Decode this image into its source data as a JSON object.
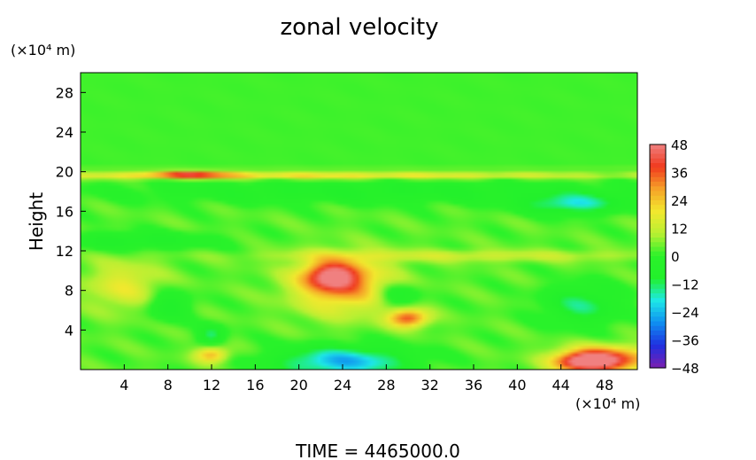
{
  "chart_data": {
    "type": "heatmap",
    "title": "zonal velocity",
    "ylabel": "Height",
    "y_unit": "(×10⁴ m)",
    "x_unit": "(×10⁴ m)",
    "footer": "TIME  =  4465000.0",
    "xlim": [
      0,
      51
    ],
    "ylim": [
      0,
      30
    ],
    "x_ticks": [
      4,
      8,
      12,
      16,
      20,
      24,
      28,
      32,
      36,
      40,
      44,
      48
    ],
    "y_ticks": [
      4,
      8,
      12,
      16,
      20,
      24,
      28
    ],
    "colorbar": {
      "levels": [
        48,
        36,
        24,
        12,
        0,
        -12,
        -24,
        -36,
        -48
      ],
      "vmin": -48,
      "vmax": 48,
      "colors": [
        "#7a1fb0",
        "#1f2fe0",
        "#0f8ef0",
        "#1ee8e8",
        "#22f02b",
        "#2af22a",
        "#b8f032",
        "#f2e82e",
        "#f6a228",
        "#f03a1e",
        "#f08080"
      ]
    },
    "field": {
      "background": 3,
      "blobs": [
        {
          "x": 24,
          "y": 8.5,
          "rx": 4.5,
          "ry": 2.8,
          "v": 26
        },
        {
          "x": 23,
          "y": 9.5,
          "rx": 2.5,
          "ry": 1.4,
          "v": 32
        },
        {
          "x": 30,
          "y": 5.2,
          "rx": 1.8,
          "ry": 0.9,
          "v": 34
        },
        {
          "x": 48,
          "y": 1.0,
          "rx": 4.0,
          "ry": 1.3,
          "v": 40
        },
        {
          "x": 46,
          "y": 0.8,
          "rx": 2.5,
          "ry": 0.9,
          "v": 30
        },
        {
          "x": 12,
          "y": 1.5,
          "rx": 1.5,
          "ry": 0.8,
          "v": 24
        },
        {
          "x": 24,
          "y": 0.8,
          "rx": 6.0,
          "ry": 1.5,
          "v": -28
        },
        {
          "x": 45,
          "y": 16.7,
          "rx": 4.5,
          "ry": 1.0,
          "v": -20
        },
        {
          "x": 46,
          "y": 6.5,
          "rx": 3.5,
          "ry": 2.0,
          "v": -16
        },
        {
          "x": 5,
          "y": 13.0,
          "rx": 7.0,
          "ry": 0.9,
          "v": -12
        },
        {
          "x": 28,
          "y": 18.0,
          "rx": 25.0,
          "ry": 1.2,
          "v": -10
        },
        {
          "x": 20,
          "y": 19.6,
          "rx": 30.0,
          "ry": 0.35,
          "v": 20
        },
        {
          "x": 10,
          "y": 19.7,
          "rx": 4.0,
          "ry": 0.3,
          "v": 30
        },
        {
          "x": 8,
          "y": 6.5,
          "rx": 2.0,
          "ry": 1.5,
          "v": -14
        },
        {
          "x": 12,
          "y": 3.5,
          "rx": 1.2,
          "ry": 1.0,
          "v": -16
        },
        {
          "x": 29,
          "y": 7.5,
          "rx": 2.0,
          "ry": 1.2,
          "v": -14
        },
        {
          "x": 35,
          "y": 11.5,
          "rx": 18.0,
          "ry": 0.6,
          "v": 10
        },
        {
          "x": 4,
          "y": 8.5,
          "rx": 3.5,
          "ry": 2.5,
          "v": 14
        }
      ]
    }
  }
}
